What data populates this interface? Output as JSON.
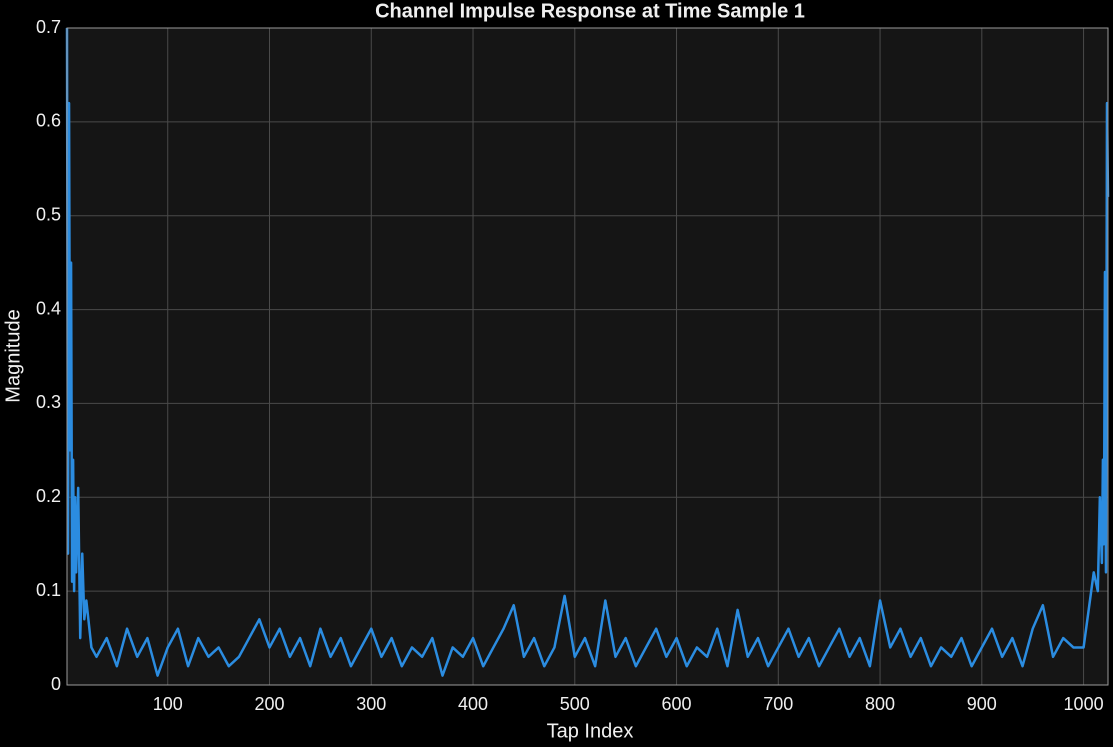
{
  "chart_data": {
    "type": "line",
    "title": "Channel Impulse Response at Time Sample 1",
    "x_label": "Tap Index",
    "y_label": "Magnitude",
    "xlim": [
      1,
      1024
    ],
    "ylim": [
      0,
      0.7
    ],
    "xticks": [
      100,
      200,
      300,
      400,
      500,
      600,
      700,
      800,
      900,
      1000
    ],
    "yticks": [
      0,
      0.1,
      0.2,
      0.3,
      0.4,
      0.5,
      0.6,
      0.7
    ],
    "grid": true,
    "series": [
      {
        "color": "#2b8ce0",
        "x": [
          1,
          2,
          3,
          4,
          5,
          6,
          7,
          8,
          9,
          10,
          12,
          14,
          16,
          18,
          20,
          25,
          30,
          40,
          50,
          60,
          70,
          80,
          90,
          100,
          110,
          120,
          130,
          140,
          150,
          160,
          170,
          180,
          190,
          200,
          210,
          220,
          230,
          240,
          250,
          260,
          270,
          280,
          290,
          300,
          310,
          320,
          330,
          340,
          350,
          360,
          370,
          380,
          390,
          400,
          410,
          420,
          430,
          440,
          450,
          460,
          470,
          480,
          490,
          500,
          510,
          520,
          530,
          540,
          550,
          560,
          570,
          580,
          590,
          600,
          610,
          620,
          630,
          640,
          650,
          660,
          670,
          680,
          690,
          700,
          710,
          720,
          730,
          740,
          750,
          760,
          770,
          780,
          790,
          800,
          810,
          820,
          830,
          840,
          850,
          860,
          870,
          880,
          890,
          900,
          910,
          920,
          930,
          940,
          950,
          960,
          970,
          980,
          990,
          1000,
          1005,
          1010,
          1014,
          1016,
          1018,
          1019,
          1020,
          1021,
          1022,
          1023,
          1024
        ],
        "values": [
          0.7,
          0.14,
          0.62,
          0.25,
          0.45,
          0.11,
          0.24,
          0.1,
          0.2,
          0.12,
          0.21,
          0.05,
          0.14,
          0.07,
          0.09,
          0.04,
          0.03,
          0.05,
          0.02,
          0.06,
          0.03,
          0.05,
          0.01,
          0.04,
          0.06,
          0.02,
          0.05,
          0.03,
          0.04,
          0.02,
          0.03,
          0.05,
          0.07,
          0.04,
          0.06,
          0.03,
          0.05,
          0.02,
          0.06,
          0.03,
          0.05,
          0.02,
          0.04,
          0.06,
          0.03,
          0.05,
          0.02,
          0.04,
          0.03,
          0.05,
          0.01,
          0.04,
          0.03,
          0.05,
          0.02,
          0.04,
          0.06,
          0.085,
          0.03,
          0.05,
          0.02,
          0.04,
          0.095,
          0.03,
          0.05,
          0.02,
          0.09,
          0.03,
          0.05,
          0.02,
          0.04,
          0.06,
          0.03,
          0.05,
          0.02,
          0.04,
          0.03,
          0.06,
          0.02,
          0.08,
          0.03,
          0.05,
          0.02,
          0.04,
          0.06,
          0.03,
          0.05,
          0.02,
          0.04,
          0.06,
          0.03,
          0.05,
          0.02,
          0.09,
          0.04,
          0.06,
          0.03,
          0.05,
          0.02,
          0.04,
          0.03,
          0.05,
          0.02,
          0.04,
          0.06,
          0.03,
          0.05,
          0.02,
          0.06,
          0.085,
          0.03,
          0.05,
          0.04,
          0.04,
          0.08,
          0.12,
          0.1,
          0.2,
          0.13,
          0.24,
          0.15,
          0.44,
          0.12,
          0.62,
          0.52
        ]
      }
    ]
  }
}
